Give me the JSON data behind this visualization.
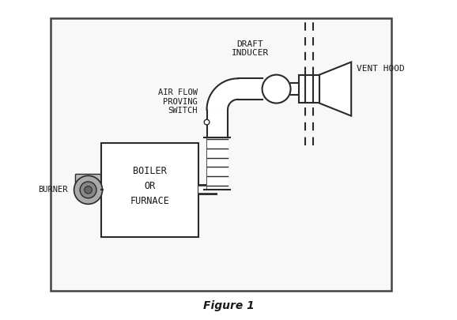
{
  "fig_width": 5.78,
  "fig_height": 4.05,
  "bg_color": "#ffffff",
  "diagram_bg": "#f8f8f8",
  "border_color": "#555555",
  "line_color": "#2a2a2a",
  "text_color": "#1a1a1a",
  "labels": {
    "draft_inducer": "DRAFT\nINDUCER",
    "vent_hood": "VENT HOOD",
    "air_flow": "AIR FLOW\nPROVING\nSWITCH",
    "boiler": "BOILER\nOR\nFURNACE",
    "burner": "BURNER",
    "figure": "Figure 1"
  },
  "xlim": [
    0,
    10
  ],
  "ylim": [
    0,
    8.5
  ]
}
